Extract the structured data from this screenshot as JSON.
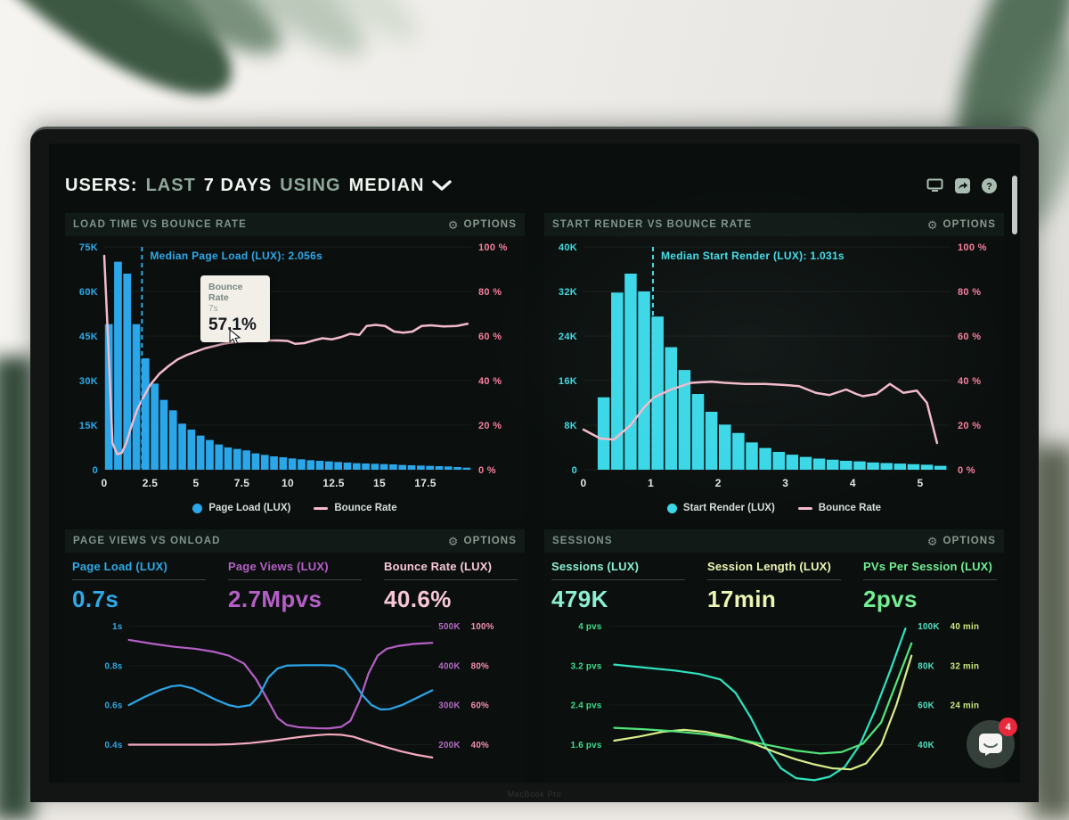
{
  "header": {
    "title_parts": [
      {
        "t": "USERS:",
        "dim": false
      },
      {
        "t": "LAST",
        "dim": true
      },
      {
        "t": "7 DAYS",
        "dim": false
      },
      {
        "t": "USING",
        "dim": true
      },
      {
        "t": "MEDIAN",
        "dim": false
      }
    ],
    "icons": [
      "display-icon",
      "share-icon",
      "help-icon"
    ]
  },
  "chat": {
    "badge": "4"
  },
  "bezel": {
    "text": "MacBook Pro"
  },
  "chart_data": [
    {
      "id": "load-time-vs-bounce-rate",
      "type": "bar",
      "panel_title": "LOAD TIME VS BOUNCE RATE",
      "options_label": "OPTIONS",
      "annotation": {
        "text": "Median Page Load (LUX): 2.056s",
        "x": 2.056
      },
      "tooltip": {
        "title": "Bounce Rate",
        "sub": "7s",
        "value": "57.1%"
      },
      "x_max": 20,
      "x_ticks": [
        "0",
        "2.5",
        "5",
        "7.5",
        "10",
        "12.5",
        "15",
        "17.5"
      ],
      "x_tick_values": [
        0,
        2.5,
        5,
        7.5,
        10,
        12.5,
        15,
        17.5
      ],
      "left_axis": {
        "max": 75,
        "tick_values": [
          0,
          15,
          30,
          45,
          60,
          75
        ],
        "labels": [
          "0",
          "15K",
          "30K",
          "45K",
          "60K",
          "75K"
        ]
      },
      "right_axis": {
        "max": 100,
        "tick_values": [
          0,
          20,
          40,
          60,
          80,
          100
        ],
        "labels": [
          "0 %",
          "20 %",
          "40 %",
          "60 %",
          "80 %",
          "100 %"
        ]
      },
      "bars": {
        "name": "Page Load (LUX)",
        "x_start": 0,
        "x_step": 0.5,
        "values_k": [
          49,
          70,
          66,
          49,
          37.5,
          29,
          23.5,
          20,
          15.5,
          13.5,
          11.5,
          10,
          8.5,
          7.5,
          7,
          6.5,
          5.5,
          5,
          4.5,
          4.2,
          3.8,
          3.5,
          3.2,
          3,
          2.8,
          2.6,
          2.4,
          2.2,
          2.1,
          2,
          1.9,
          1.8,
          1.6,
          1.5,
          1.4,
          1.3,
          1.2,
          1.1,
          0.9,
          0.7
        ]
      },
      "line": {
        "name": "Bounce Rate",
        "points": [
          [
            0,
            96
          ],
          [
            0.2,
            60
          ],
          [
            0.45,
            12
          ],
          [
            0.7,
            7
          ],
          [
            0.95,
            7.5
          ],
          [
            1.2,
            12
          ],
          [
            1.5,
            20
          ],
          [
            1.8,
            27
          ],
          [
            2.1,
            32
          ],
          [
            2.5,
            38
          ],
          [
            3,
            43
          ],
          [
            3.5,
            46.5
          ],
          [
            4,
            49.5
          ],
          [
            4.5,
            51.5
          ],
          [
            5,
            53
          ],
          [
            5.5,
            54.5
          ],
          [
            6,
            55.5
          ],
          [
            6.5,
            56.5
          ],
          [
            7,
            57.1
          ],
          [
            7.5,
            57.5
          ],
          [
            8,
            57.8
          ],
          [
            8.5,
            58
          ],
          [
            9,
            58
          ],
          [
            9.5,
            58
          ],
          [
            10,
            57.8
          ],
          [
            10.4,
            56.5
          ],
          [
            10.9,
            56.8
          ],
          [
            11.4,
            58
          ],
          [
            11.9,
            59
          ],
          [
            12.4,
            58.5
          ],
          [
            12.9,
            59.5
          ],
          [
            13.4,
            61
          ],
          [
            13.9,
            60.5
          ],
          [
            14.3,
            64.5
          ],
          [
            14.8,
            65
          ],
          [
            15.3,
            64.5
          ],
          [
            15.8,
            62
          ],
          [
            16.3,
            61.5
          ],
          [
            16.8,
            62
          ],
          [
            17.3,
            64.5
          ],
          [
            17.8,
            64.8
          ],
          [
            18.5,
            64.3
          ],
          [
            19.2,
            64.5
          ],
          [
            19.8,
            65.5
          ]
        ]
      },
      "legend": [
        {
          "label": "Page Load (LUX)",
          "color": "#2BA6E8",
          "marker": "dot"
        },
        {
          "label": "Bounce Rate",
          "color": "#F4BACB",
          "marker": "line"
        }
      ],
      "colors": {
        "bar": "#2BA6E8",
        "line": "#F4BACB",
        "left_axis": "#2EA9E8",
        "right_axis": "#F77F9E",
        "median": "#2FA8EA",
        "x_axis": "#DFE6E1"
      }
    },
    {
      "id": "start-render-vs-bounce-rate",
      "type": "bar",
      "panel_title": "START RENDER VS BOUNCE RATE",
      "options_label": "OPTIONS",
      "annotation": {
        "text": "Median Start Render (LUX): 1.031s",
        "x": 1.031
      },
      "x_max": 5.45,
      "x_ticks": [
        "0",
        "1",
        "2",
        "3",
        "4",
        "5"
      ],
      "x_tick_values": [
        0,
        1,
        2,
        3,
        4,
        5
      ],
      "left_axis": {
        "max": 40,
        "tick_values": [
          0,
          8,
          16,
          24,
          32,
          40
        ],
        "labels": [
          "0",
          "8K",
          "16K",
          "24K",
          "32K",
          "40K"
        ]
      },
      "right_axis": {
        "max": 100,
        "tick_values": [
          0,
          20,
          40,
          60,
          80,
          100
        ],
        "labels": [
          "0 %",
          "20 %",
          "40 %",
          "60 %",
          "80 %",
          "100 %"
        ]
      },
      "bars": {
        "name": "Start Render (LUX)",
        "x_start": 0.2,
        "x_step": 0.2,
        "values_k": [
          13,
          31.8,
          35.2,
          32,
          27.5,
          22,
          17.9,
          13.6,
          10.4,
          8.1,
          6.6,
          4.9,
          3.9,
          3.2,
          2.7,
          2.3,
          2,
          1.8,
          1.6,
          1.5,
          1.3,
          1.2,
          1.1,
          1,
          0.9,
          0.7
        ]
      },
      "line": {
        "name": "Bounce Rate",
        "points": [
          [
            0,
            18
          ],
          [
            0.25,
            14
          ],
          [
            0.45,
            13.5
          ],
          [
            0.7,
            20
          ],
          [
            0.9,
            28
          ],
          [
            1.05,
            32.5
          ],
          [
            1.3,
            36
          ],
          [
            1.6,
            39
          ],
          [
            1.9,
            39.5
          ],
          [
            2.1,
            39
          ],
          [
            2.4,
            38.5
          ],
          [
            2.7,
            38.5
          ],
          [
            3,
            38
          ],
          [
            3.2,
            37.5
          ],
          [
            3.45,
            34.5
          ],
          [
            3.65,
            33.5
          ],
          [
            3.9,
            36
          ],
          [
            4.05,
            34
          ],
          [
            4.15,
            33
          ],
          [
            4.35,
            34
          ],
          [
            4.55,
            38.5
          ],
          [
            4.75,
            34.5
          ],
          [
            4.95,
            35.5
          ],
          [
            5.1,
            30
          ],
          [
            5.25,
            12
          ]
        ]
      },
      "legend": [
        {
          "label": "Start Render (LUX)",
          "color": "#3BD8E8",
          "marker": "dot"
        },
        {
          "label": "Bounce Rate",
          "color": "#F4BACB",
          "marker": "line"
        }
      ],
      "colors": {
        "bar": "#3BD8E8",
        "line": "#F4BACB",
        "left_axis": "#43D9E4",
        "right_axis": "#F77F9E",
        "median": "#45DCE8",
        "x_axis": "#DFE6E1"
      }
    },
    {
      "id": "page-views-vs-onload",
      "type": "line",
      "panel_title": "PAGE VIEWS VS ONLOAD",
      "options_label": "OPTIONS",
      "metrics": [
        {
          "label": "Page Load (LUX)",
          "value": "0.7s",
          "color": "#2FA9E8"
        },
        {
          "label": "Page Views (LUX)",
          "value": "2.7Mpvs",
          "color": "#B55FC6"
        },
        {
          "label": "Bounce Rate (LUX)",
          "value": "40.6%",
          "color": "#F7C7D6"
        }
      ],
      "rows": [
        {
          "left": "1s",
          "mid": "500K",
          "right": "100%"
        },
        {
          "left": "0.8s",
          "mid": "400K",
          "right": "80%"
        },
        {
          "left": "0.6s",
          "mid": "300K",
          "right": "60%"
        },
        {
          "left": "0.4s",
          "mid": "200K",
          "right": "40%"
        }
      ],
      "y_top": 1.0,
      "y_step": 0.2,
      "series": [
        {
          "name": "Page Views (LUX)",
          "color": "#B55FC6",
          "points": [
            [
              0,
              0.93
            ],
            [
              8,
              0.91
            ],
            [
              15,
              0.895
            ],
            [
              22,
              0.885
            ],
            [
              28,
              0.87
            ],
            [
              33,
              0.85
            ],
            [
              38,
              0.81
            ],
            [
              42,
              0.73
            ],
            [
              46,
              0.62
            ],
            [
              49,
              0.535
            ],
            [
              52,
              0.5
            ],
            [
              56,
              0.488
            ],
            [
              62,
              0.483
            ],
            [
              66,
              0.482
            ],
            [
              70,
              0.49
            ],
            [
              73,
              0.52
            ],
            [
              76,
              0.62
            ],
            [
              79,
              0.76
            ],
            [
              82,
              0.85
            ],
            [
              85,
              0.885
            ],
            [
              89,
              0.9
            ],
            [
              94,
              0.91
            ],
            [
              100,
              0.915
            ]
          ]
        },
        {
          "name": "Page Load (LUX)",
          "color": "#2BA6E8",
          "points": [
            [
              0,
              0.6
            ],
            [
              5,
              0.64
            ],
            [
              10,
              0.675
            ],
            [
              14,
              0.695
            ],
            [
              17,
              0.7
            ],
            [
              21,
              0.685
            ],
            [
              25,
              0.655
            ],
            [
              29,
              0.625
            ],
            [
              33,
              0.6
            ],
            [
              36,
              0.59
            ],
            [
              40,
              0.6
            ],
            [
              43,
              0.65
            ],
            [
              46,
              0.74
            ],
            [
              49,
              0.785
            ],
            [
              52,
              0.8
            ],
            [
              58,
              0.802
            ],
            [
              64,
              0.802
            ],
            [
              68,
              0.8
            ],
            [
              71,
              0.78
            ],
            [
              74,
              0.72
            ],
            [
              77,
              0.65
            ],
            [
              80,
              0.6
            ],
            [
              83,
              0.578
            ],
            [
              86,
              0.58
            ],
            [
              90,
              0.6
            ],
            [
              94,
              0.63
            ],
            [
              100,
              0.675
            ]
          ]
        },
        {
          "name": "Bounce Rate (LUX)",
          "color": "#F4A9BE",
          "points": [
            [
              0,
              0.4
            ],
            [
              10,
              0.4
            ],
            [
              20,
              0.4
            ],
            [
              28,
              0.4
            ],
            [
              34,
              0.402
            ],
            [
              40,
              0.408
            ],
            [
              46,
              0.418
            ],
            [
              52,
              0.43
            ],
            [
              57,
              0.44
            ],
            [
              62,
              0.448
            ],
            [
              66,
              0.452
            ],
            [
              70,
              0.45
            ],
            [
              74,
              0.44
            ],
            [
              78,
              0.42
            ],
            [
              82,
              0.4
            ],
            [
              86,
              0.382
            ],
            [
              90,
              0.365
            ],
            [
              95,
              0.348
            ],
            [
              100,
              0.335
            ]
          ]
        }
      ],
      "colors": {
        "left_axis": "#2FA9E8",
        "mid_axis": "#B76AC6",
        "right_axis": "#F78FB2"
      }
    },
    {
      "id": "sessions",
      "type": "line",
      "panel_title": "SESSIONS",
      "options_label": "OPTIONS",
      "metrics": [
        {
          "label": "Sessions (LUX)",
          "value": "479K",
          "color": "#8CEFD2"
        },
        {
          "label": "Session Length (LUX)",
          "value": "17min",
          "color": "#EDF5B4"
        },
        {
          "label": "PVs Per Session (LUX)",
          "value": "2pvs",
          "color": "#72EE93"
        }
      ],
      "rows": [
        {
          "left": "4 pvs",
          "mid": "100K",
          "right": "40 min"
        },
        {
          "left": "3.2 pvs",
          "mid": "80K",
          "right": "32 min"
        },
        {
          "left": "2.4 pvs",
          "mid": "60K",
          "right": "24 min"
        },
        {
          "left": "1.6 pvs",
          "mid": "40K",
          "right": ""
        }
      ],
      "y_top": 4.0,
      "y_step": 0.8,
      "series": [
        {
          "name": "Sessions (LUX)",
          "color": "#2FE2BE",
          "points": [
            [
              2,
              3.22
            ],
            [
              12,
              3.16
            ],
            [
              22,
              3.1
            ],
            [
              30,
              3.03
            ],
            [
              37,
              2.92
            ],
            [
              42,
              2.65
            ],
            [
              47,
              2.15
            ],
            [
              52,
              1.55
            ],
            [
              57,
              1.12
            ],
            [
              62,
              0.92
            ],
            [
              68,
              0.88
            ],
            [
              73,
              0.95
            ],
            [
              78,
              1.15
            ],
            [
              83,
              1.6
            ],
            [
              88,
              2.3
            ],
            [
              93,
              3.1
            ],
            [
              98,
              3.95
            ]
          ]
        },
        {
          "name": "Session Length (LUX)",
          "color": "#D9EE8A",
          "points": [
            [
              2,
              1.68
            ],
            [
              10,
              1.76
            ],
            [
              18,
              1.86
            ],
            [
              25,
              1.9
            ],
            [
              32,
              1.86
            ],
            [
              40,
              1.76
            ],
            [
              48,
              1.62
            ],
            [
              55,
              1.45
            ],
            [
              62,
              1.3
            ],
            [
              68,
              1.2
            ],
            [
              74,
              1.12
            ],
            [
              80,
              1.1
            ],
            [
              85,
              1.22
            ],
            [
              90,
              1.6
            ],
            [
              95,
              2.4
            ],
            [
              100,
              3.4
            ]
          ]
        },
        {
          "name": "PVs Per Session (LUX)",
          "color": "#52E57A",
          "points": [
            [
              2,
              1.94
            ],
            [
              12,
              1.91
            ],
            [
              22,
              1.87
            ],
            [
              32,
              1.81
            ],
            [
              42,
              1.72
            ],
            [
              52,
              1.6
            ],
            [
              62,
              1.48
            ],
            [
              70,
              1.42
            ],
            [
              77,
              1.45
            ],
            [
              84,
              1.62
            ],
            [
              90,
              2.05
            ],
            [
              95,
              2.85
            ],
            [
              100,
              3.65
            ]
          ]
        }
      ],
      "colors": {
        "left_axis": "#3BE08A",
        "mid_axis": "#4FE3C2",
        "right_axis": "#CDE87E"
      }
    }
  ]
}
